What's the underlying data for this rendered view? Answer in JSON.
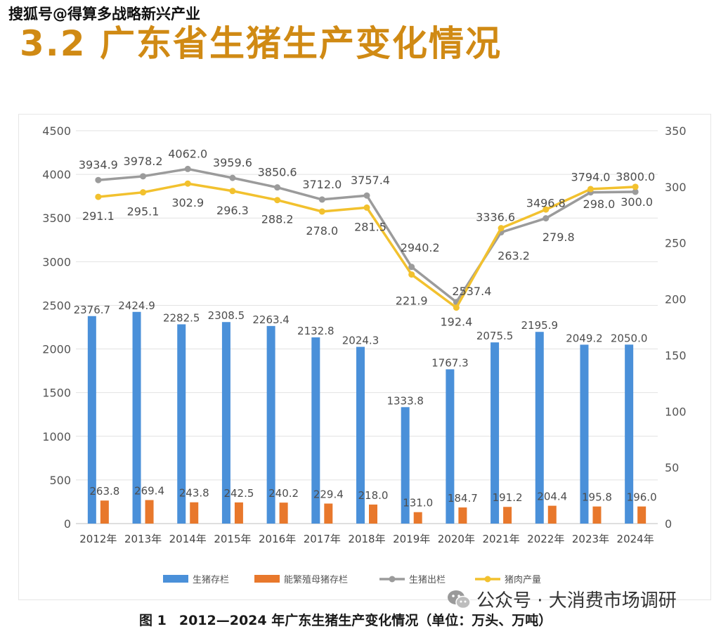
{
  "watermark_top": "搜狐号@得算多战略新兴产业",
  "section_title": "3.2 广东省生猪生产变化情况",
  "caption": {
    "figure_label": "图 1",
    "text": "2012—2024 年广东生猪生产变化情况（单位：万头、万吨）"
  },
  "watermark_bottom": "公众号 · 大消费市场调研",
  "chart_data": {
    "type": "bar",
    "categories": [
      "2012年",
      "2013年",
      "2014年",
      "2015年",
      "2016年",
      "2017年",
      "2018年",
      "2019年",
      "2020年",
      "2021年",
      "2022年",
      "2023年",
      "2024年"
    ],
    "y_left": {
      "min": 0,
      "max": 4500,
      "ticks": [
        "0",
        "500",
        "1000",
        "1500",
        "2000",
        "2500",
        "3000",
        "3500",
        "4000",
        "4500"
      ]
    },
    "y_right": {
      "min": 0,
      "max": 350,
      "ticks": [
        "0",
        "50",
        "100",
        "150",
        "200",
        "250",
        "300",
        "350"
      ]
    },
    "grid": true,
    "legend_position": "bottom",
    "series": [
      {
        "name": "生猪存栏",
        "type": "bar",
        "axis": "left",
        "color": "#4a90d9",
        "values": [
          2376.7,
          2424.9,
          2282.5,
          2308.5,
          2263.4,
          2132.8,
          2024.3,
          1333.8,
          1767.3,
          2075.5,
          2195.9,
          2049.2,
          2050.0
        ],
        "labels": [
          "2376.7",
          "2424.9",
          "2282.5",
          "2308.5",
          "2263.4",
          "2132.8",
          "2024.3",
          "1333.8",
          "1767.3",
          "2075.5",
          "2195.9",
          "2049.2",
          "2050.0"
        ]
      },
      {
        "name": "能繁殖母猪存栏",
        "type": "bar",
        "axis": "left",
        "color": "#e8782c",
        "values": [
          263.8,
          269.4,
          243.8,
          242.5,
          240.2,
          229.4,
          218.0,
          131.0,
          184.7,
          191.2,
          204.4,
          195.8,
          196.0
        ],
        "labels": [
          "263.8",
          "269.4",
          "243.8",
          "242.5",
          "240.2",
          "229.4",
          "218.0",
          "131.0",
          "184.7",
          "191.2",
          "204.4",
          "195.8",
          "196.0"
        ]
      },
      {
        "name": "生猪出栏",
        "type": "line",
        "axis": "left",
        "color": "#9b9b9b",
        "values": [
          3934.9,
          3978.2,
          4062.0,
          3959.6,
          3850.6,
          3712.0,
          3757.4,
          2940.2,
          2537.4,
          3336.6,
          3496.8,
          3794.0,
          3800.0
        ],
        "labels": [
          "3934.9",
          "3978.2",
          "4062.0",
          "3959.6",
          "3850.6",
          "3712.0",
          "3757.4",
          "2940.2",
          "2537.4",
          "3336.6",
          "3496.8",
          "3794.0",
          "3800.0"
        ]
      },
      {
        "name": "猪肉产量",
        "type": "line",
        "axis": "right",
        "color": "#f2c12e",
        "values": [
          291.1,
          295.1,
          302.9,
          296.3,
          288.2,
          278.0,
          281.5,
          221.9,
          192.4,
          263.2,
          279.8,
          298.0,
          300.0
        ],
        "labels": [
          "291.1",
          "295.1",
          "302.9",
          "296.3",
          "288.2",
          "278.0",
          "281.5",
          "221.9",
          "192.4",
          "263.2",
          "279.8",
          "298.0",
          "300.0"
        ]
      }
    ]
  }
}
